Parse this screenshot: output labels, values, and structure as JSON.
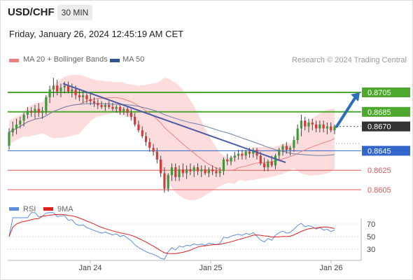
{
  "header": {
    "symbol": "USD/CHF",
    "timeframe": "30 MIN",
    "datetime": "Friday, January 26, 2024 12:45:19 AM CET"
  },
  "legend": {
    "ma20": {
      "label": "MA 20 + Bollinger Bands",
      "color": "#f08080"
    },
    "ma50": {
      "label": "MA 50",
      "color": "#2f5597"
    },
    "copyright": "Research © 2024 Trading Central"
  },
  "rsi_legend": {
    "rsi": {
      "label": "RSI",
      "color": "#5b8de0"
    },
    "ma9": {
      "label": "9MA",
      "color": "#e02020"
    }
  },
  "chart_data": [
    {
      "type": "candlestick",
      "title": "",
      "x_ticks": [
        "Jan 24",
        "Jan 25",
        "Jan 26"
      ],
      "ylim": [
        0.8598,
        0.8725
      ],
      "price_levels": [
        {
          "value": 0.8705,
          "label": "0.8705",
          "kind": "resistance",
          "color": "#4ea72e"
        },
        {
          "value": 0.8685,
          "label": "0.8685",
          "kind": "resistance",
          "color": "#4ea72e"
        },
        {
          "value": 0.867,
          "label": "0.8670",
          "kind": "last",
          "color": "#333333"
        },
        {
          "value": 0.8645,
          "label": "0.8645",
          "kind": "support",
          "color": "#3366cc"
        },
        {
          "value": 0.8625,
          "label": "0.8625",
          "kind": "support",
          "color": "#e05555"
        },
        {
          "value": 0.8605,
          "label": "0.8605",
          "kind": "support",
          "color": "#e05555"
        }
      ],
      "trendline": {
        "start": 0.8714,
        "end": 0.8633
      },
      "forecast_arrow": {
        "from": 0.867,
        "to": 0.8705
      },
      "candles": [
        [
          0.865,
          0.8668,
          0.8646,
          0.8664
        ],
        [
          0.8664,
          0.8675,
          0.866,
          0.8668
        ],
        [
          0.8668,
          0.8678,
          0.8662,
          0.8672
        ],
        [
          0.8672,
          0.868,
          0.8668,
          0.8676
        ],
        [
          0.8676,
          0.8684,
          0.867,
          0.8682
        ],
        [
          0.8682,
          0.869,
          0.8678,
          0.8686
        ],
        [
          0.8686,
          0.869,
          0.868,
          0.8684
        ],
        [
          0.8684,
          0.8692,
          0.8678,
          0.8688
        ],
        [
          0.8688,
          0.8694,
          0.868,
          0.8684
        ],
        [
          0.8684,
          0.869,
          0.8678,
          0.8686
        ],
        [
          0.8686,
          0.8702,
          0.8682,
          0.87
        ],
        [
          0.87,
          0.8712,
          0.8694,
          0.8708
        ],
        [
          0.8708,
          0.872,
          0.87,
          0.8712
        ],
        [
          0.8712,
          0.8718,
          0.8702,
          0.8706
        ],
        [
          0.8706,
          0.8714,
          0.87,
          0.871
        ],
        [
          0.871,
          0.8716,
          0.8704,
          0.8712
        ],
        [
          0.8712,
          0.8716,
          0.8704,
          0.8706
        ],
        [
          0.8706,
          0.8714,
          0.87,
          0.8708
        ],
        [
          0.8708,
          0.8712,
          0.8698,
          0.8702
        ],
        [
          0.8702,
          0.8708,
          0.8696,
          0.87
        ],
        [
          0.87,
          0.8706,
          0.8694,
          0.8702
        ],
        [
          0.8702,
          0.8706,
          0.8694,
          0.8698
        ],
        [
          0.8698,
          0.8704,
          0.8692,
          0.8696
        ],
        [
          0.8696,
          0.87,
          0.869,
          0.8694
        ],
        [
          0.8694,
          0.8698,
          0.8688,
          0.8692
        ],
        [
          0.8692,
          0.8696,
          0.8688,
          0.869
        ],
        [
          0.869,
          0.8694,
          0.8686,
          0.8692
        ],
        [
          0.8692,
          0.8696,
          0.8688,
          0.869
        ],
        [
          0.869,
          0.8694,
          0.8686,
          0.8688
        ],
        [
          0.8688,
          0.8692,
          0.8684,
          0.869
        ],
        [
          0.869,
          0.8692,
          0.8682,
          0.8686
        ],
        [
          0.8686,
          0.869,
          0.8682,
          0.8688
        ],
        [
          0.8688,
          0.869,
          0.868,
          0.8684
        ],
        [
          0.8684,
          0.8688,
          0.8676,
          0.868
        ],
        [
          0.868,
          0.8684,
          0.867,
          0.8672
        ],
        [
          0.8672,
          0.8676,
          0.8664,
          0.8666
        ],
        [
          0.8666,
          0.867,
          0.8658,
          0.866
        ],
        [
          0.866,
          0.8664,
          0.865,
          0.8654
        ],
        [
          0.8654,
          0.8658,
          0.8644,
          0.8648
        ],
        [
          0.8648,
          0.8652,
          0.864,
          0.8644
        ],
        [
          0.8644,
          0.8648,
          0.8632,
          0.8636
        ],
        [
          0.8636,
          0.864,
          0.8618,
          0.8622
        ],
        [
          0.8622,
          0.8628,
          0.8602,
          0.8606
        ],
        [
          0.8606,
          0.8622,
          0.8603,
          0.862
        ],
        [
          0.862,
          0.8632,
          0.8614,
          0.8628
        ],
        [
          0.8628,
          0.8632,
          0.8614,
          0.8618
        ],
        [
          0.8618,
          0.863,
          0.8614,
          0.8626
        ],
        [
          0.8626,
          0.8632,
          0.8618,
          0.8622
        ],
        [
          0.8622,
          0.863,
          0.8616,
          0.8626
        ],
        [
          0.8626,
          0.8632,
          0.862,
          0.8624
        ],
        [
          0.8624,
          0.863,
          0.8618,
          0.8628
        ],
        [
          0.8628,
          0.8632,
          0.862,
          0.8624
        ],
        [
          0.8624,
          0.863,
          0.8618,
          0.8626
        ],
        [
          0.8626,
          0.863,
          0.862,
          0.8622
        ],
        [
          0.8622,
          0.8628,
          0.8618,
          0.8626
        ],
        [
          0.8626,
          0.863,
          0.862,
          0.8624
        ],
        [
          0.8624,
          0.8628,
          0.8618,
          0.8622
        ],
        [
          0.8622,
          0.8628,
          0.8618,
          0.8624
        ],
        [
          0.8624,
          0.8638,
          0.862,
          0.8636
        ],
        [
          0.8636,
          0.8642,
          0.863,
          0.8634
        ],
        [
          0.8634,
          0.864,
          0.863,
          0.8638
        ],
        [
          0.8638,
          0.8644,
          0.8634,
          0.864
        ],
        [
          0.864,
          0.8646,
          0.8636,
          0.8642
        ],
        [
          0.8642,
          0.8646,
          0.8636,
          0.864
        ],
        [
          0.864,
          0.8646,
          0.8636,
          0.8644
        ],
        [
          0.8644,
          0.8648,
          0.8638,
          0.8642
        ],
        [
          0.8642,
          0.8648,
          0.8638,
          0.8646
        ],
        [
          0.8646,
          0.8648,
          0.8636,
          0.864
        ],
        [
          0.864,
          0.8644,
          0.863,
          0.8632
        ],
        [
          0.8632,
          0.8638,
          0.8624,
          0.8628
        ],
        [
          0.8628,
          0.8636,
          0.8624,
          0.8634
        ],
        [
          0.8634,
          0.864,
          0.8628,
          0.863
        ],
        [
          0.863,
          0.8642,
          0.8626,
          0.864
        ],
        [
          0.864,
          0.8648,
          0.8636,
          0.8646
        ],
        [
          0.8646,
          0.8652,
          0.864,
          0.865
        ],
        [
          0.865,
          0.8654,
          0.8642,
          0.8646
        ],
        [
          0.8646,
          0.865,
          0.864,
          0.8648
        ],
        [
          0.8648,
          0.866,
          0.8644,
          0.8656
        ],
        [
          0.8656,
          0.8672,
          0.8652,
          0.8668
        ],
        [
          0.8668,
          0.8682,
          0.866,
          0.8676
        ],
        [
          0.8676,
          0.868,
          0.8666,
          0.867
        ],
        [
          0.867,
          0.8678,
          0.8664,
          0.8674
        ],
        [
          0.8674,
          0.8678,
          0.8666,
          0.8672
        ],
        [
          0.8672,
          0.8676,
          0.8664,
          0.8668
        ],
        [
          0.8668,
          0.8676,
          0.8664,
          0.8672
        ],
        [
          0.8672,
          0.8676,
          0.8664,
          0.8668
        ],
        [
          0.8668,
          0.8674,
          0.8662,
          0.867
        ],
        [
          0.867,
          0.8674,
          0.8664,
          0.8666
        ],
        [
          0.8666,
          0.8672,
          0.8662,
          0.867
        ]
      ]
    },
    {
      "type": "line",
      "series": [
        {
          "name": "RSI"
        },
        {
          "name": "9MA"
        }
      ],
      "y_ticks": [
        70,
        50,
        30
      ],
      "ylim": [
        14,
        88
      ]
    }
  ]
}
